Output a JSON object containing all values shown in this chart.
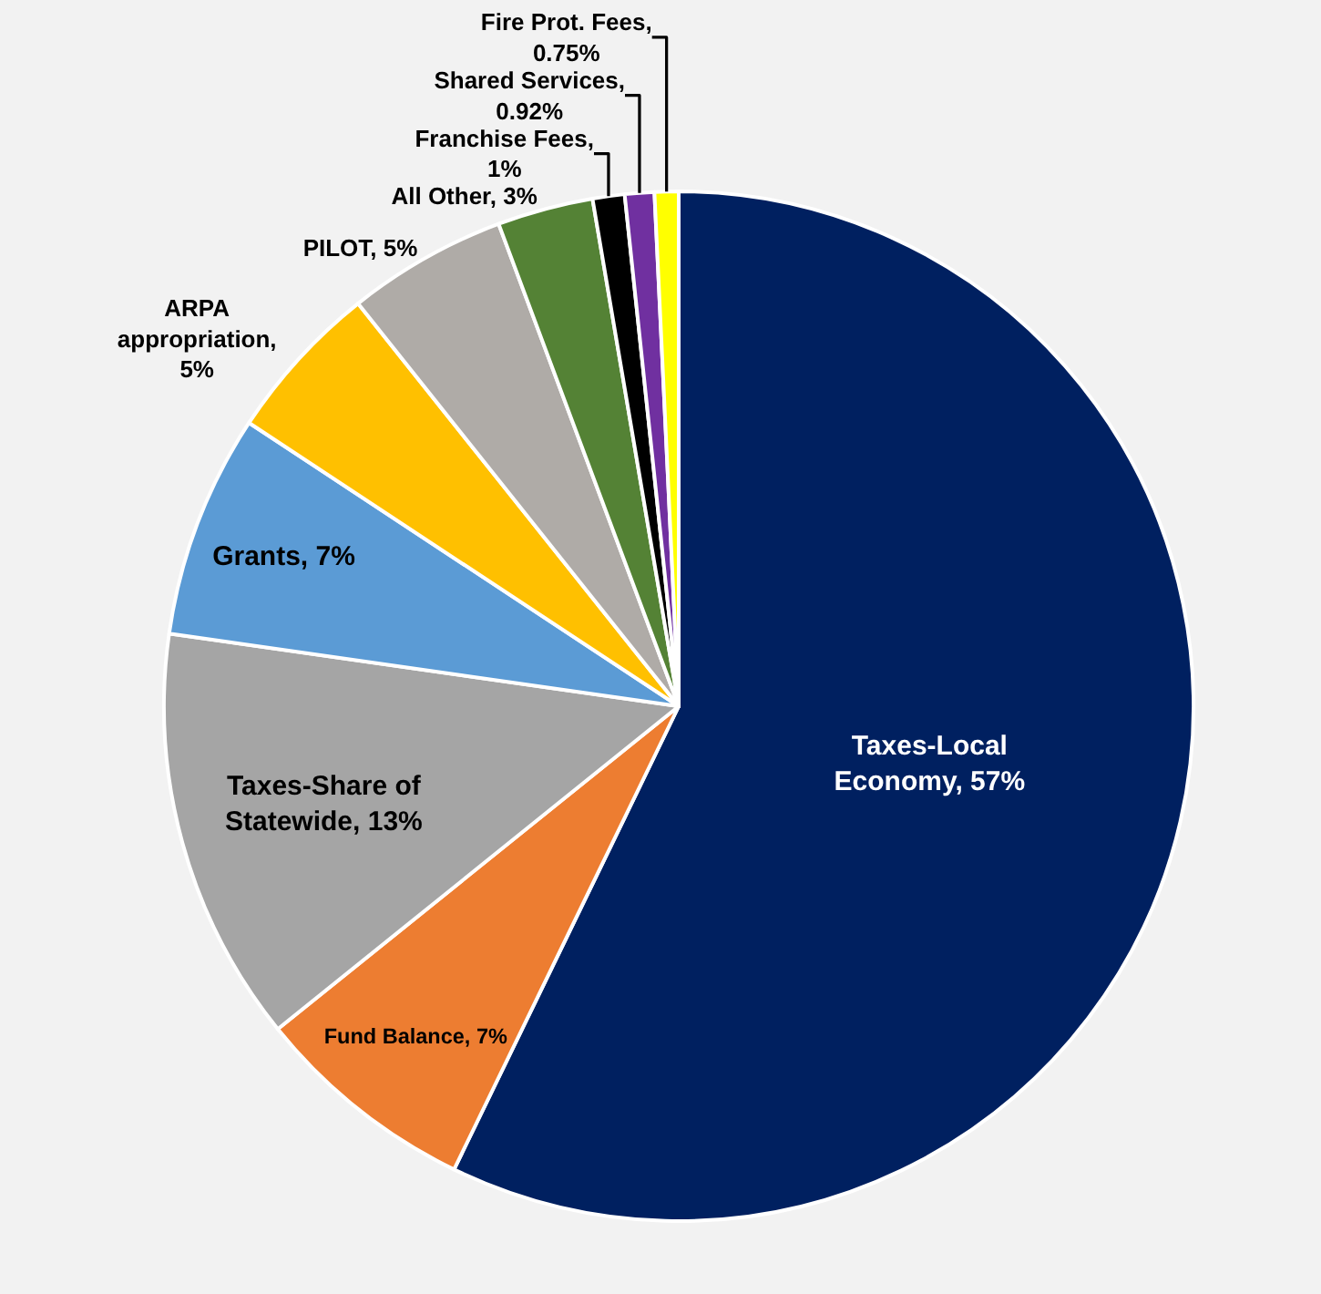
{
  "chart_data": {
    "type": "pie",
    "categories": [
      "Taxes-Local Economy, 57%",
      "Fund Balance, 7%",
      "Taxes-Share of Statewide, 13%",
      "Grants, 7%",
      "ARPA appropriation, 5%",
      "PILOT, 5%",
      "All Other, 3%",
      "Franchise Fees, 1%",
      "Shared Services, 0.92%",
      "Fire Prot. Fees, 0.75%"
    ],
    "values": [
      57,
      7,
      13,
      7,
      5,
      5,
      3,
      1,
      0.92,
      0.75
    ],
    "colors": [
      "#002060",
      "#ed7d31",
      "#a5a5a5",
      "#5b9bd5",
      "#ffc000",
      "#afaba7",
      "#548235",
      "#000000",
      "#7030a0",
      "#ffff00"
    ],
    "legend": false
  }
}
